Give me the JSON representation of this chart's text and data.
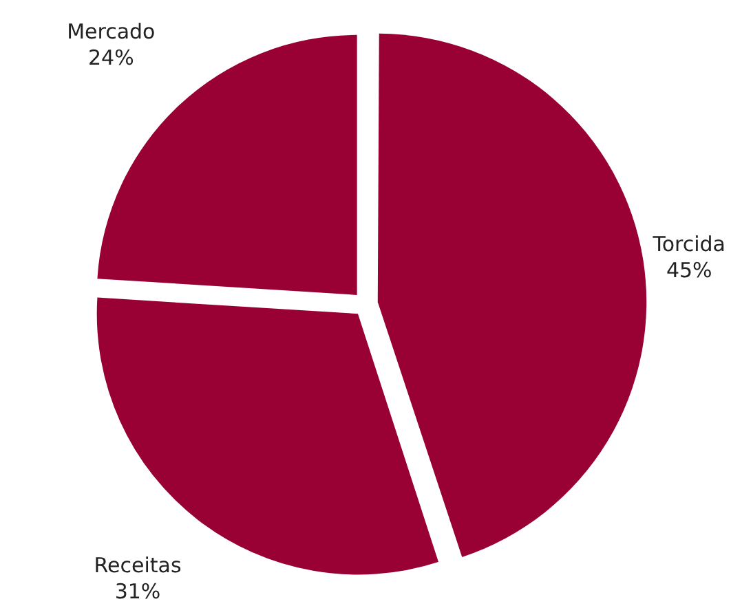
{
  "chart_data": {
    "type": "pie",
    "categories": [
      "Torcida",
      "Receitas",
      "Mercado"
    ],
    "values": [
      45,
      31,
      24
    ],
    "colors": [
      "#990033",
      "#990033",
      "#990033"
    ],
    "value_labels": [
      "45%",
      "31%",
      "24%"
    ],
    "legend": false
  }
}
